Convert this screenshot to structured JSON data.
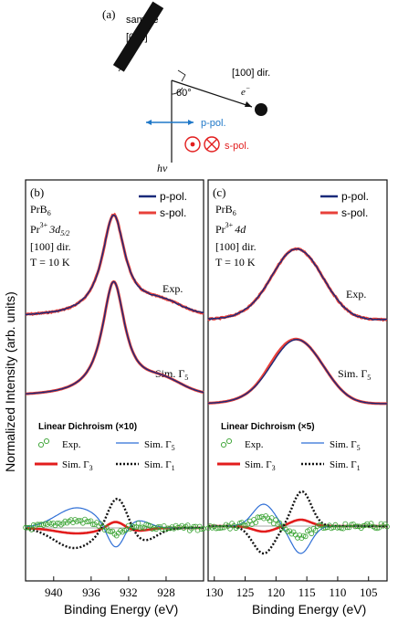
{
  "colors": {
    "p_pol": "#1a2a7a",
    "s_pol": "#e8403a",
    "exp": "#33a02c",
    "sim_g5": "#2f6fd6",
    "sim_g3": "#e21d1d",
    "sim_g1": "#111111",
    "ppol_arrow": "#1f78c8",
    "spol_sym": "#e21d1d"
  },
  "diagram": {
    "label": "(a)",
    "sample": "sample",
    "direction": "[0",
    "dir_bar": "1",
    "dir_end": "1]",
    "angle": "60°",
    "beam_dir": "[100] dir.",
    "electron": "e",
    "electron_sup": "−",
    "p_pol": "p-pol.",
    "s_pol": "s-pol.",
    "photon": "hν"
  },
  "y_axis_label": "Normalized Intensity (arb. units)",
  "x_axis_label": "Binding Energy (eV)",
  "panels": [
    {
      "label": "(b)",
      "compound": "PrB",
      "compound_sub": "6",
      "ion": "Pr",
      "ion_sup": "3+",
      "level": "3d",
      "level_sub": "5/2",
      "direction": "[100] dir.",
      "temp": "T = 10 K",
      "legend_p": "p-pol.",
      "legend_s": "s-pol.",
      "exp_label": "Exp.",
      "sim_label": "Sim. Γ",
      "sim_label_sub": "5",
      "ld_title": "Linear Dichroism (×10)",
      "ld_exp": "Exp.",
      "ld_g5": "Sim. Γ",
      "ld_g5_sub": "5",
      "ld_g3": "Sim. Γ",
      "ld_g3_sub": "3",
      "ld_g1": "Sim. Γ",
      "ld_g1_sub": "1",
      "ticks": [
        "940",
        "936",
        "932",
        "928"
      ]
    },
    {
      "label": "(c)",
      "compound": "PrB",
      "compound_sub": "6",
      "ion": "Pr",
      "ion_sup": "3+",
      "level": "4d",
      "level_sub": "",
      "direction": "[100] dir.",
      "temp": "T = 10 K",
      "legend_p": "p-pol.",
      "legend_s": "s-pol.",
      "exp_label": "Exp.",
      "sim_label": "Sim. Γ",
      "sim_label_sub": "5",
      "ld_title": "Linear Dichroism (×5)",
      "ld_exp": "Exp.",
      "ld_g5": "Sim. Γ",
      "ld_g5_sub": "5",
      "ld_g3": "Sim. Γ",
      "ld_g3_sub": "3",
      "ld_g1": "Sim. Γ",
      "ld_g1_sub": "1",
      "ticks": [
        "130",
        "125",
        "120",
        "115",
        "110",
        "105"
      ]
    }
  ],
  "chart_data": [
    {
      "type": "line",
      "xlabel": "Binding Energy (eV)",
      "ylabel": "Normalized Intensity (arb. units)",
      "xlim": [
        943,
        924
      ],
      "reversed_x": true,
      "peak_eV": 933.6,
      "series": [
        {
          "name": "p-pol.",
          "kind": "Exp.",
          "peak": 933.6
        },
        {
          "name": "s-pol.",
          "kind": "Exp.",
          "peak": 933.6
        },
        {
          "name": "p-pol.",
          "kind": "Sim. Γ5",
          "peak": 933.6
        },
        {
          "name": "s-pol.",
          "kind": "Sim. Γ5",
          "peak": 933.6
        },
        {
          "name": "Exp.",
          "kind": "Linear Dichroism (×10)"
        },
        {
          "name": "Sim. Γ5",
          "kind": "Linear Dichroism (×10)"
        },
        {
          "name": "Sim. Γ3",
          "kind": "Linear Dichroism (×10)"
        },
        {
          "name": "Sim. Γ1",
          "kind": "Linear Dichroism (×10)"
        }
      ]
    },
    {
      "type": "line",
      "xlabel": "Binding Energy (eV)",
      "ylabel": "Normalized Intensity (arb. units)",
      "xlim": [
        131,
        102
      ],
      "reversed_x": true,
      "peak_eV": 117,
      "series": [
        {
          "name": "p-pol.",
          "kind": "Exp.",
          "peak": 117
        },
        {
          "name": "s-pol.",
          "kind": "Exp.",
          "peak": 117
        },
        {
          "name": "p-pol.",
          "kind": "Sim. Γ5",
          "peak": 117
        },
        {
          "name": "s-pol.",
          "kind": "Sim. Γ5",
          "peak": 117
        },
        {
          "name": "Exp.",
          "kind": "Linear Dichroism (×5)"
        },
        {
          "name": "Sim. Γ5",
          "kind": "Linear Dichroism (×5)"
        },
        {
          "name": "Sim. Γ3",
          "kind": "Linear Dichroism (×5)"
        },
        {
          "name": "Sim. Γ1",
          "kind": "Linear Dichroism (×5)"
        }
      ]
    }
  ]
}
